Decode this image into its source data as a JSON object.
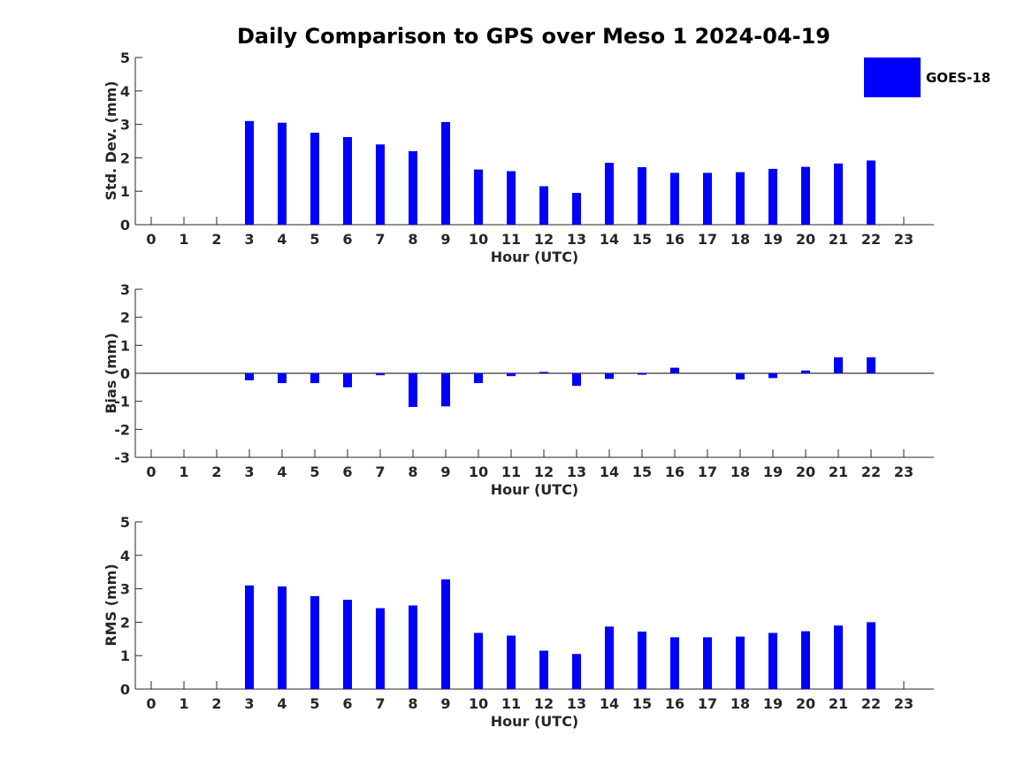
{
  "chart_data": [
    {
      "id": "std",
      "type": "bar",
      "title": "Daily Comparison to GPS over Meso 1 2024-04-19",
      "xlabel": "Hour (UTC)",
      "ylabel": "Std. Dev. (mm)",
      "ylim": [
        0,
        5
      ],
      "yticks": [
        0,
        1,
        2,
        3,
        4,
        5
      ],
      "categories": [
        "0",
        "1",
        "2",
        "3",
        "4",
        "5",
        "6",
        "7",
        "8",
        "9",
        "10",
        "11",
        "12",
        "13",
        "14",
        "15",
        "16",
        "17",
        "18",
        "19",
        "20",
        "21",
        "22",
        "23"
      ],
      "series": [
        {
          "name": "GOES-18",
          "color": "#0000ff",
          "values": [
            null,
            null,
            null,
            3.1,
            3.05,
            2.75,
            2.62,
            2.4,
            2.2,
            3.07,
            1.65,
            1.6,
            1.15,
            0.95,
            1.85,
            1.72,
            1.55,
            1.55,
            1.57,
            1.67,
            1.73,
            1.83,
            1.92,
            null
          ]
        }
      ],
      "legend": {
        "position": "top-right",
        "entries": [
          "GOES-18"
        ]
      }
    },
    {
      "id": "bias",
      "type": "bar",
      "xlabel": "Hour (UTC)",
      "ylabel": "Bias (mm)",
      "ylim": [
        -3,
        3
      ],
      "yticks": [
        -3,
        -2,
        -1,
        0,
        1,
        2,
        3
      ],
      "categories": [
        "0",
        "1",
        "2",
        "3",
        "4",
        "5",
        "6",
        "7",
        "8",
        "9",
        "10",
        "11",
        "12",
        "13",
        "14",
        "15",
        "16",
        "17",
        "18",
        "19",
        "20",
        "21",
        "22",
        "23"
      ],
      "series": [
        {
          "name": "GOES-18",
          "color": "#0000ff",
          "values": [
            null,
            null,
            null,
            -0.25,
            -0.35,
            -0.35,
            -0.5,
            -0.07,
            -1.2,
            -1.18,
            -0.35,
            -0.1,
            0.05,
            -0.45,
            -0.2,
            -0.05,
            0.2,
            null,
            -0.22,
            -0.17,
            0.1,
            0.57,
            0.57,
            null
          ]
        }
      ]
    },
    {
      "id": "rms",
      "type": "bar",
      "xlabel": "Hour (UTC)",
      "ylabel": "RMS (mm)",
      "ylim": [
        0,
        5
      ],
      "yticks": [
        0,
        1,
        2,
        3,
        4,
        5
      ],
      "categories": [
        "0",
        "1",
        "2",
        "3",
        "4",
        "5",
        "6",
        "7",
        "8",
        "9",
        "10",
        "11",
        "12",
        "13",
        "14",
        "15",
        "16",
        "17",
        "18",
        "19",
        "20",
        "21",
        "22",
        "23"
      ],
      "series": [
        {
          "name": "GOES-18",
          "color": "#0000ff",
          "values": [
            null,
            null,
            null,
            3.1,
            3.07,
            2.78,
            2.67,
            2.42,
            2.5,
            3.28,
            1.68,
            1.6,
            1.15,
            1.05,
            1.87,
            1.72,
            1.55,
            1.55,
            1.57,
            1.68,
            1.73,
            1.9,
            2.0,
            null
          ]
        }
      ]
    }
  ]
}
